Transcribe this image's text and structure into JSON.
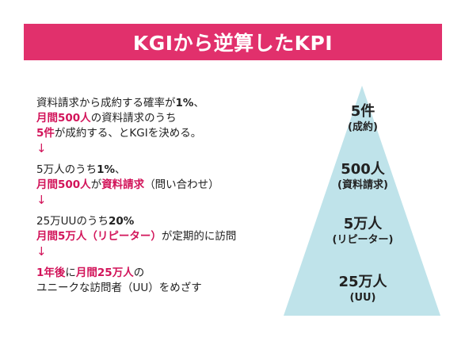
{
  "title": "KGIから逆算したKPI",
  "steps": [
    {
      "lines": [
        [
          {
            "t": "資料請求から成約する確率が"
          },
          {
            "t": "1%",
            "cls": "b"
          },
          {
            "t": "、"
          }
        ],
        [
          {
            "t": "月間500人",
            "cls": "hl"
          },
          {
            "t": "の資料請求のうち"
          }
        ],
        [
          {
            "t": "5件",
            "cls": "hl"
          },
          {
            "t": "が成約する、とKGIを決める。"
          }
        ]
      ]
    },
    {
      "lines": [
        [
          {
            "t": "5万人のうち"
          },
          {
            "t": "1%",
            "cls": "b"
          },
          {
            "t": "、"
          }
        ],
        [
          {
            "t": "月間500人",
            "cls": "hl"
          },
          {
            "t": "が"
          },
          {
            "t": "資料請求",
            "cls": "hl"
          },
          {
            "t": "（問い合わせ）"
          }
        ]
      ]
    },
    {
      "lines": [
        [
          {
            "t": "25万UUのうち"
          },
          {
            "t": "20%",
            "cls": "b"
          }
        ],
        [
          {
            "t": "月間5万人（リピーター）",
            "cls": "hl"
          },
          {
            "t": "が定期的に訪問"
          }
        ]
      ]
    },
    {
      "lines": [
        [
          {
            "t": "1年後",
            "cls": "hl"
          },
          {
            "t": "に"
          },
          {
            "t": "月間25万人",
            "cls": "hl"
          },
          {
            "t": "の"
          }
        ],
        [
          {
            "t": "ユニークな訪問者（UU）をめざす"
          }
        ]
      ]
    }
  ],
  "arrow": "↓",
  "pyramid": {
    "color": "#bfe3ea",
    "levels": [
      {
        "main": "5件",
        "sub": "(成約)"
      },
      {
        "main": "500人",
        "sub": "(資料請求)"
      },
      {
        "main": "5万人",
        "sub": "(リピーター)"
      },
      {
        "main": "25万人",
        "sub": "(UU)"
      }
    ]
  }
}
